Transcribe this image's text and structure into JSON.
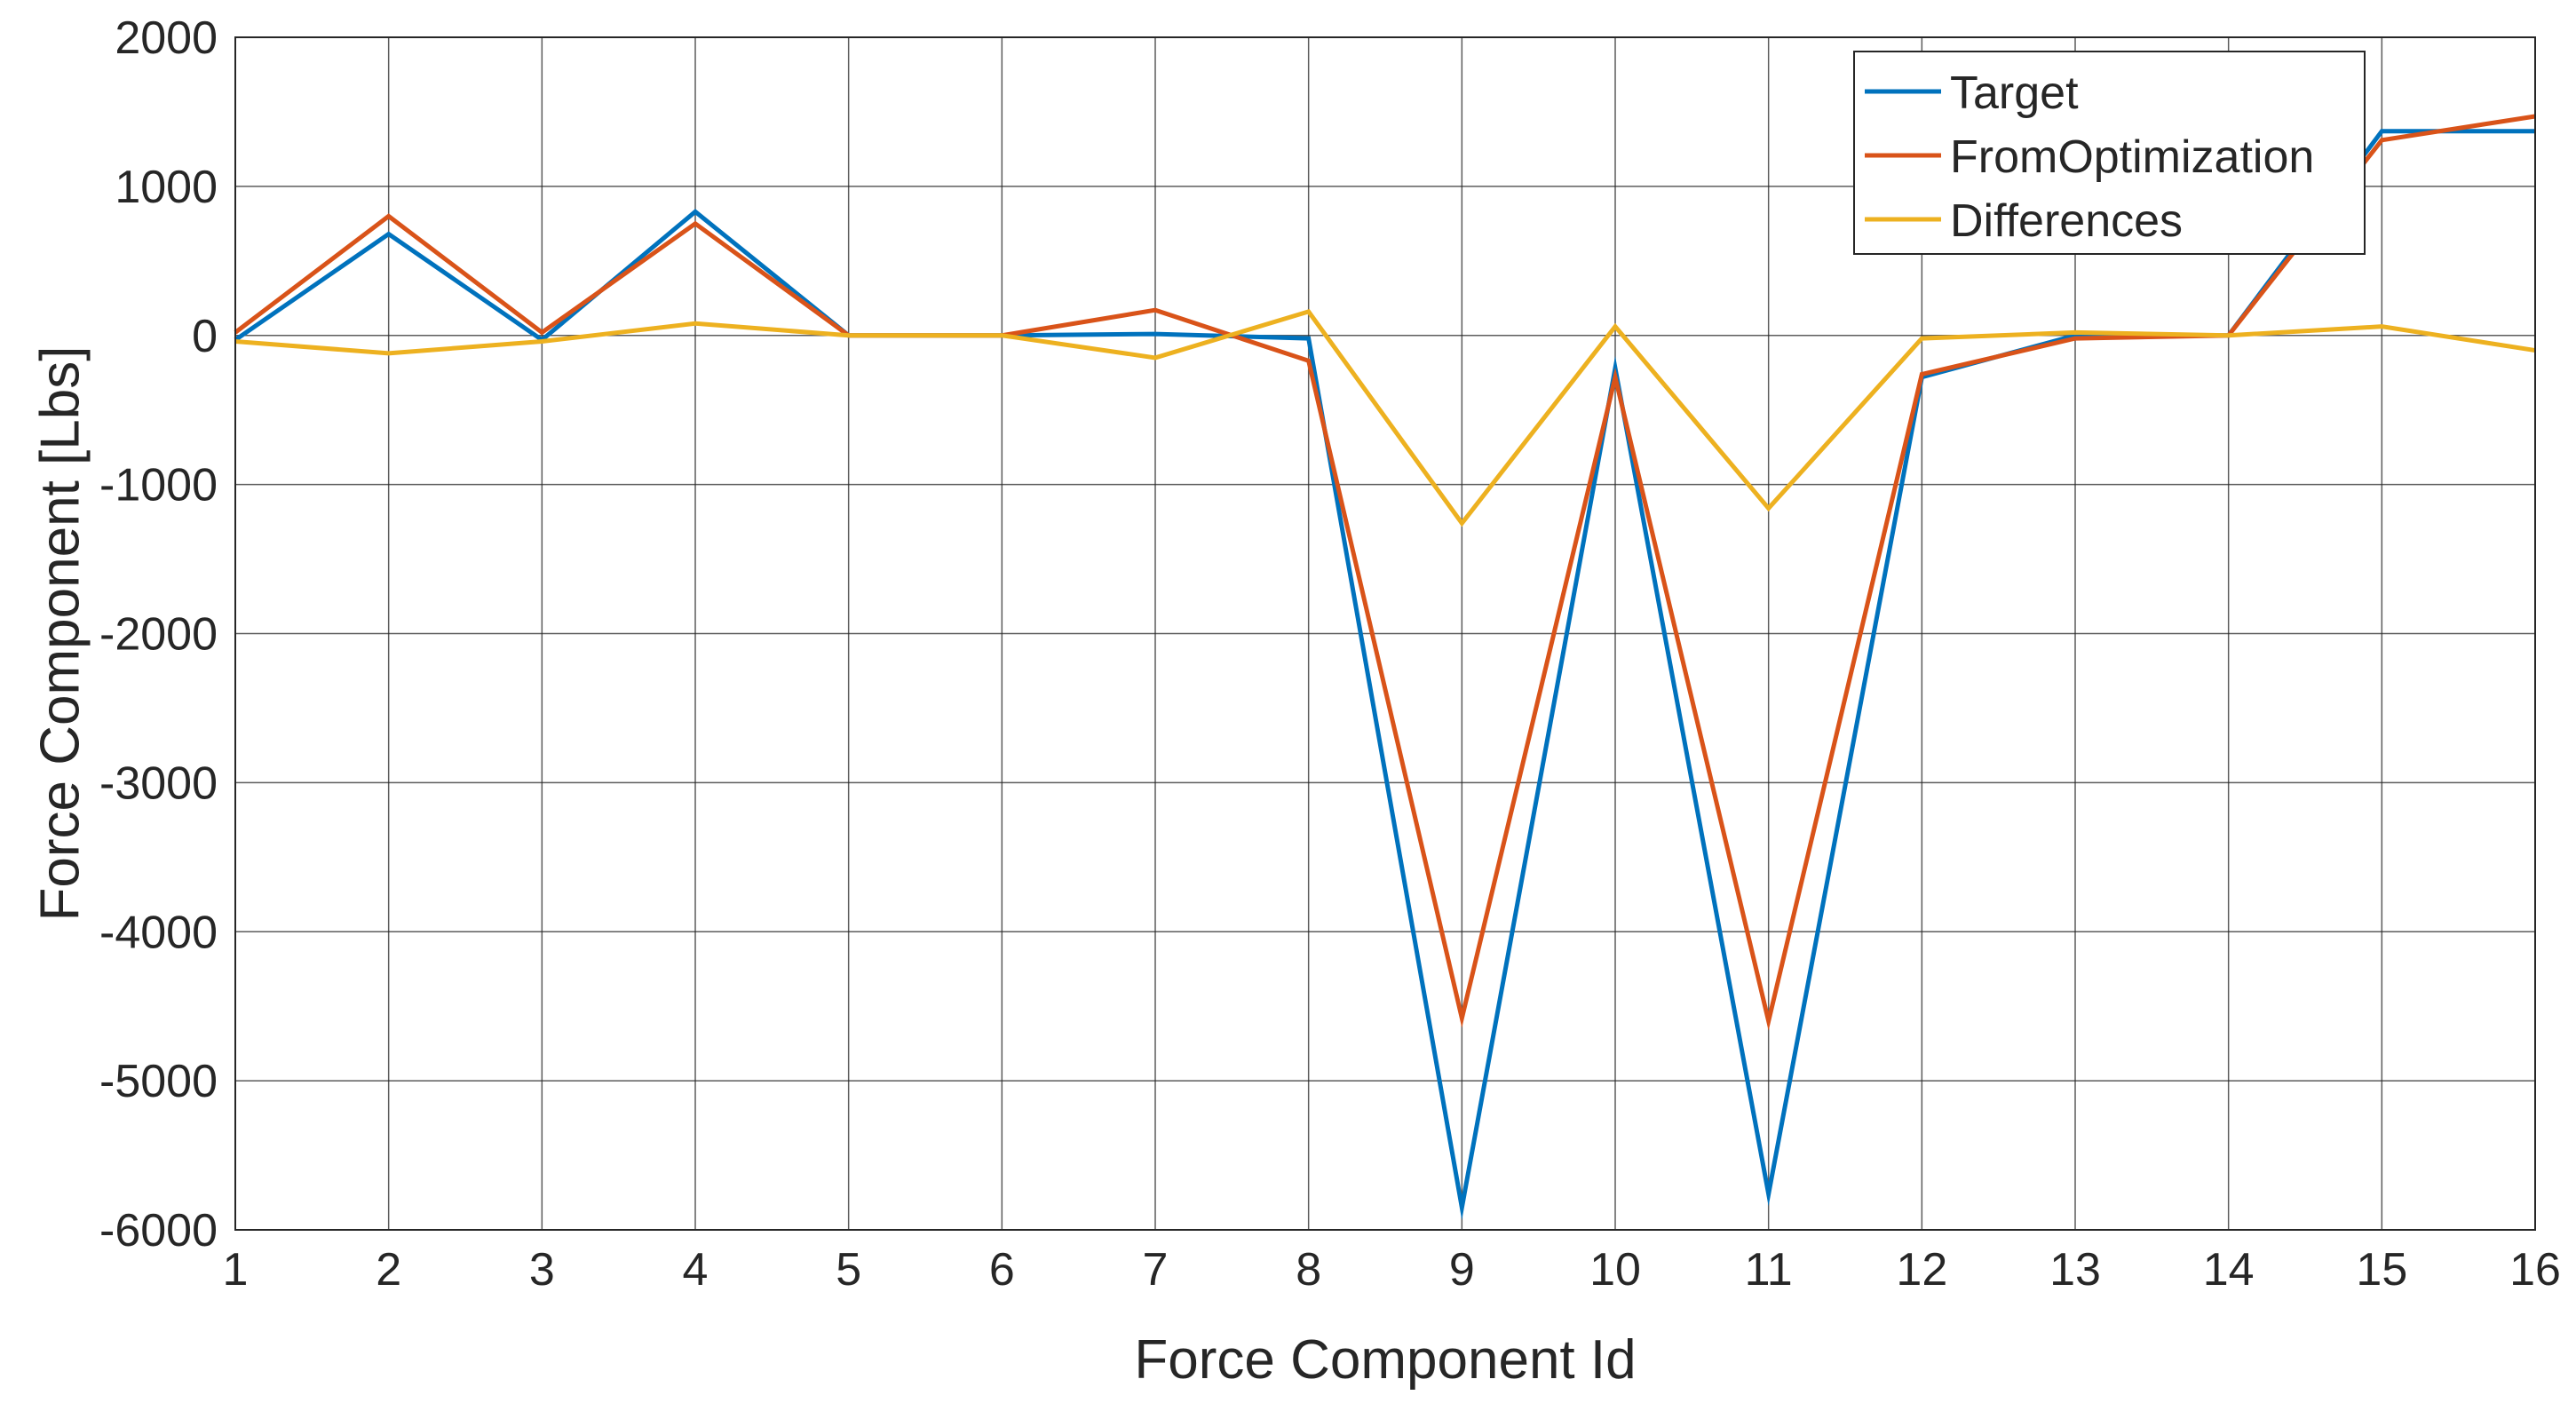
{
  "chart_data": {
    "type": "line",
    "title": "",
    "xlabel": "Force Component Id",
    "ylabel": "Force Component [Lbs]",
    "xlim": [
      1,
      16
    ],
    "ylim": [
      -6000,
      2000
    ],
    "xticks": [
      1,
      2,
      3,
      4,
      5,
      6,
      7,
      8,
      9,
      10,
      11,
      12,
      13,
      14,
      15,
      16
    ],
    "yticks": [
      2000,
      1000,
      0,
      -1000,
      -2000,
      -3000,
      -4000,
      -5000,
      -6000
    ],
    "grid": true,
    "legend_position": "top-right",
    "x": [
      1,
      2,
      3,
      4,
      5,
      6,
      7,
      8,
      9,
      10,
      11,
      12,
      13,
      14,
      15,
      16
    ],
    "series": [
      {
        "name": "Target",
        "color": "#0072BD",
        "values": [
          -30,
          680,
          -30,
          830,
          0,
          0,
          10,
          -20,
          -5850,
          -220,
          -5760,
          -280,
          0,
          0,
          1370,
          1370
        ]
      },
      {
        "name": "FromOptimization",
        "color": "#D95319",
        "values": [
          20,
          800,
          20,
          750,
          0,
          0,
          170,
          -170,
          -4580,
          -280,
          -4600,
          -260,
          -20,
          0,
          1310,
          1470
        ]
      },
      {
        "name": "Differences",
        "color": "#EDB120",
        "values": [
          -40,
          -120,
          -40,
          80,
          0,
          0,
          -150,
          160,
          -1260,
          60,
          -1160,
          -20,
          20,
          0,
          60,
          -100
        ]
      }
    ]
  }
}
